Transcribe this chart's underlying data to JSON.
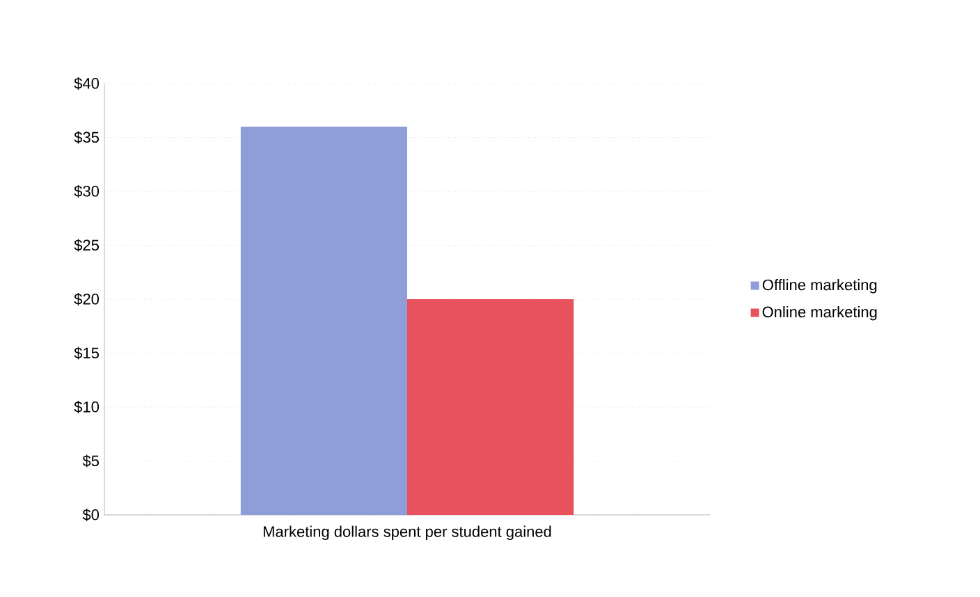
{
  "chart_data": {
    "type": "bar",
    "categories": [
      "Marketing dollars spent per student gained"
    ],
    "series": [
      {
        "name": "Offline marketing",
        "color": "#8f9ed8",
        "values": [
          36
        ]
      },
      {
        "name": "Online marketing",
        "color": "#e8525c",
        "values": [
          20
        ]
      }
    ],
    "ylim": [
      0,
      40
    ],
    "yticks": [
      {
        "value": 0,
        "label": "$0"
      },
      {
        "value": 5,
        "label": "$5"
      },
      {
        "value": 10,
        "label": "$10"
      },
      {
        "value": 15,
        "label": "$15"
      },
      {
        "value": 20,
        "label": "$20"
      },
      {
        "value": 25,
        "label": "$25"
      },
      {
        "value": 30,
        "label": "$30"
      },
      {
        "value": 35,
        "label": "$35"
      },
      {
        "value": 40,
        "label": "$40"
      }
    ],
    "grid": "y",
    "legend": "right"
  }
}
